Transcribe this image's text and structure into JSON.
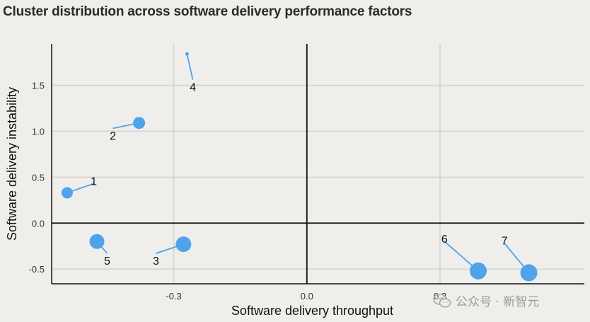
{
  "chart_data": {
    "type": "scatter",
    "title": "Cluster distribution across software delivery performance factors",
    "xlabel": "Software delivery throughput",
    "ylabel": "Software delivery instability",
    "xlim": [
      -0.575,
      0.625
    ],
    "ylim": [
      -0.66,
      1.95
    ],
    "xticks": [
      -0.3,
      0.0,
      0.3
    ],
    "xtick_labels": [
      "-0.3",
      "0.0",
      "0.3"
    ],
    "yticks": [
      -0.5,
      0.0,
      0.5,
      1.0,
      1.5
    ],
    "ytick_labels": [
      "-0.5",
      "0.0",
      "0.5",
      "1.0",
      "1.5"
    ],
    "grid": true,
    "point_color": "#4ea3ea",
    "points": [
      {
        "label": "1",
        "x": -0.54,
        "y": 0.33,
        "size": 8,
        "label_x": -0.48,
        "label_y": 0.4
      },
      {
        "label": "2",
        "x": -0.378,
        "y": 1.09,
        "size": 8.5,
        "label_x": -0.437,
        "label_y": 1.0
      },
      {
        "label": "3",
        "x": -0.278,
        "y": -0.23,
        "size": 11,
        "label_x": -0.34,
        "label_y": -0.36
      },
      {
        "label": "4",
        "x": -0.27,
        "y": 1.84,
        "size": 2.5,
        "label_x": -0.257,
        "label_y": 1.53
      },
      {
        "label": "5",
        "x": -0.473,
        "y": -0.2,
        "size": 10.5,
        "label_x": -0.45,
        "label_y": -0.36
      },
      {
        "label": "6",
        "x": 0.386,
        "y": -0.52,
        "size": 12,
        "label_x": 0.31,
        "label_y": -0.23
      },
      {
        "label": "7",
        "x": 0.5,
        "y": -0.54,
        "size": 12,
        "label_x": 0.445,
        "label_y": -0.25
      }
    ]
  },
  "watermark": {
    "text": "公众号 · 新智元",
    "icon": "wechat-icon"
  }
}
